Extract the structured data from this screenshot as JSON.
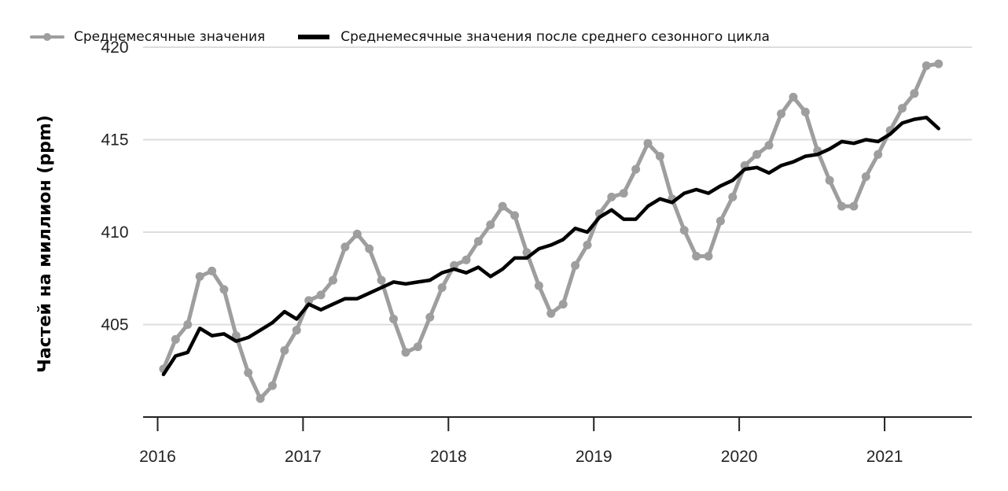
{
  "chart_data": {
    "type": "line",
    "title": "",
    "xlabel": "",
    "ylabel": "Частей на миллион (ppm)",
    "xlim": [
      2015.9,
      2021.6
    ],
    "ylim": [
      400,
      420
    ],
    "grid": true,
    "legend_position": "top-left",
    "x_ticks": [
      2016,
      2017,
      2018,
      2019,
      2020,
      2021
    ],
    "x_tick_labels": [
      "2016",
      "2017",
      "2018",
      "2019",
      "2020",
      "2021"
    ],
    "y_ticks": [
      405,
      410,
      415,
      420
    ],
    "y_tick_labels": [
      "405",
      "410",
      "415",
      "420"
    ],
    "x_start": 2016.04,
    "x_step": 0.0833,
    "series": [
      {
        "name": "Среднемесячные значения",
        "color": "#9e9e9e",
        "markers": true,
        "values": [
          402.6,
          404.2,
          405.0,
          407.6,
          407.9,
          406.9,
          404.4,
          402.4,
          401.0,
          401.7,
          403.6,
          404.7,
          406.3,
          406.6,
          407.4,
          409.2,
          409.9,
          409.1,
          407.4,
          405.3,
          403.5,
          403.8,
          405.4,
          407.0,
          408.2,
          408.5,
          409.5,
          410.4,
          411.4,
          410.9,
          408.9,
          407.1,
          405.6,
          406.1,
          408.2,
          409.3,
          411.0,
          411.9,
          412.1,
          413.4,
          414.8,
          414.1,
          411.8,
          410.1,
          408.7,
          408.7,
          410.6,
          411.9,
          413.6,
          414.2,
          414.7,
          416.4,
          417.3,
          416.5,
          414.4,
          412.8,
          411.4,
          411.4,
          413.0,
          414.2,
          415.5,
          416.7,
          417.5,
          419.0,
          419.1
        ]
      },
      {
        "name": "Среднемесячные значения после среднего сезонного цикла",
        "color": "#000000",
        "markers": false,
        "values": [
          402.3,
          403.3,
          403.5,
          404.8,
          404.4,
          404.5,
          404.1,
          404.3,
          404.7,
          405.1,
          405.7,
          405.3,
          406.1,
          405.8,
          406.1,
          406.4,
          406.4,
          406.7,
          407.0,
          407.3,
          407.2,
          407.3,
          407.4,
          407.8,
          408.0,
          407.8,
          408.1,
          407.6,
          408.0,
          408.6,
          408.6,
          409.1,
          409.3,
          409.6,
          410.2,
          410.0,
          410.8,
          411.2,
          410.7,
          410.7,
          411.4,
          411.8,
          411.6,
          412.1,
          412.3,
          412.1,
          412.5,
          412.8,
          413.4,
          413.5,
          413.2,
          413.6,
          413.8,
          414.1,
          414.2,
          414.5,
          414.9,
          414.8,
          415.0,
          414.9,
          415.3,
          415.9,
          416.1,
          416.2,
          415.6
        ]
      }
    ]
  }
}
